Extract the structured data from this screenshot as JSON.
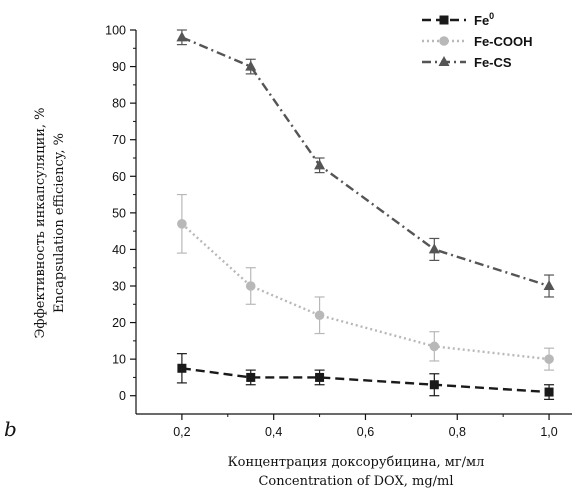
{
  "panel_label": "b",
  "chart_data": {
    "type": "line",
    "x": [
      0.2,
      0.35,
      0.5,
      0.75,
      1.0
    ],
    "xlim": [
      0.1,
      1.05
    ],
    "ylim": [
      -5,
      100
    ],
    "xticks": [
      0.2,
      0.4,
      0.6,
      0.8,
      1.0
    ],
    "xtick_labels": [
      "0,2",
      "0,4",
      "0,6",
      "0,8",
      "1,0"
    ],
    "yticks": [
      0,
      10,
      20,
      30,
      40,
      50,
      60,
      70,
      80,
      90,
      100
    ],
    "ytick_labels": [
      "0",
      "10",
      "20",
      "30",
      "40",
      "50",
      "60",
      "70",
      "80",
      "90",
      "100"
    ],
    "xlabel": [
      "Концентрация доксорубицина, мг/мл",
      "Concentration of DOX, mg/ml"
    ],
    "ylabel": [
      "Эффективность инкапсуляции, %",
      "Encapsulation efficiency, %"
    ],
    "grid": false,
    "legend_position": "top-right",
    "series": [
      {
        "name": "Fe",
        "name_superscript": "0",
        "values": [
          7.5,
          5,
          5,
          3,
          1
        ],
        "errors": [
          4,
          2,
          2,
          3,
          2
        ],
        "color": "#1a1a1a",
        "marker": "square",
        "line_style": "dash"
      },
      {
        "name": "Fe-COOH",
        "values": [
          47,
          30,
          22,
          13.5,
          10
        ],
        "errors": [
          8,
          5,
          5,
          4,
          3
        ],
        "color": "#b8b8b8",
        "marker": "circle",
        "line_style": "dot"
      },
      {
        "name": "Fe-CS",
        "values": [
          98,
          90,
          63,
          40,
          30
        ],
        "errors": [
          2,
          2,
          2,
          3,
          3
        ],
        "color": "#555555",
        "marker": "triangle",
        "line_style": "dash-dot"
      }
    ]
  }
}
